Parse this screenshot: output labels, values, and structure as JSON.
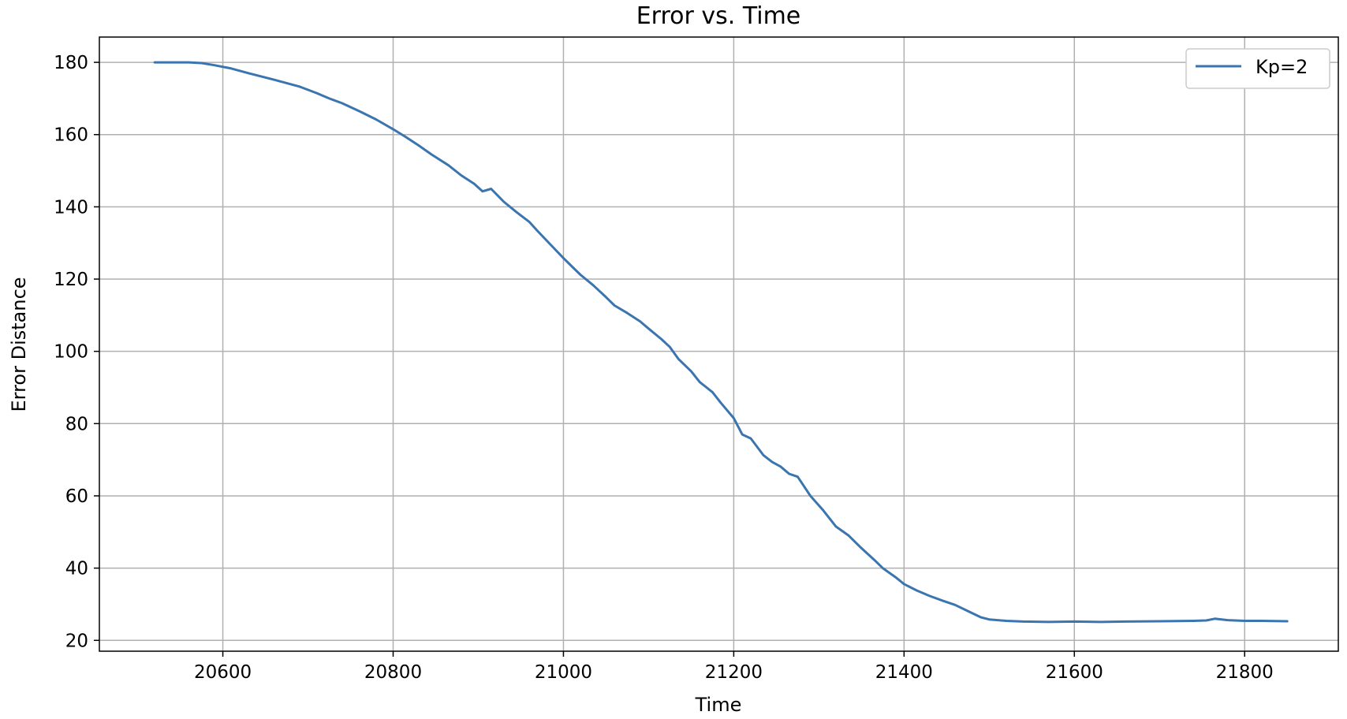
{
  "chart_data": {
    "type": "line",
    "title": "Error vs. Time",
    "xlabel": "Time",
    "ylabel": "Error Distance",
    "xlim": [
      20455,
      21910
    ],
    "ylim": [
      17,
      187
    ],
    "xticks": [
      20600,
      20800,
      21000,
      21200,
      21400,
      21600,
      21800
    ],
    "yticks": [
      20,
      40,
      60,
      80,
      100,
      120,
      140,
      160,
      180
    ],
    "grid": true,
    "legend_position": "top-right",
    "colors": {
      "series": "#3b75af",
      "grid": "#b0b0b0",
      "axis": "#000000"
    },
    "series": [
      {
        "name": "Kp=2",
        "x": [
          20520,
          20540,
          20560,
          20575,
          20590,
          20610,
          20630,
          20660,
          20690,
          20710,
          20725,
          20740,
          20760,
          20780,
          20800,
          20815,
          20830,
          20845,
          20865,
          20880,
          20895,
          20905,
          20915,
          20930,
          20945,
          20960,
          20970,
          20985,
          21000,
          21010,
          21020,
          21035,
          21050,
          21060,
          21075,
          21090,
          21100,
          21115,
          21125,
          21135,
          21150,
          21160,
          21175,
          21185,
          21200,
          21210,
          21220,
          21235,
          21245,
          21255,
          21265,
          21275,
          21290,
          21305,
          21320,
          21335,
          21350,
          21365,
          21375,
          21390,
          21400,
          21415,
          21430,
          21445,
          21460,
          21475,
          21490,
          21500,
          21520,
          21540,
          21570,
          21600,
          21630,
          21660,
          21700,
          21740,
          21755,
          21765,
          21780,
          21800,
          21820,
          21850
        ],
        "y": [
          180,
          180,
          180,
          179.8,
          179.2,
          178.3,
          177,
          175.2,
          173.3,
          171.5,
          170,
          168.7,
          166.5,
          164.2,
          161.5,
          159.3,
          157,
          154.5,
          151.5,
          148.7,
          146.4,
          144.3,
          145,
          141.4,
          138.5,
          135.8,
          133.2,
          129.5,
          125.8,
          123.5,
          121.2,
          118.3,
          115,
          112.7,
          110.6,
          108.3,
          106.3,
          103.4,
          101.2,
          97.9,
          94.5,
          91.5,
          88.7,
          85.7,
          81.5,
          77,
          75.9,
          71.2,
          69.4,
          68.1,
          66.1,
          65.3,
          60,
          56,
          51.5,
          49,
          45.5,
          42.3,
          40,
          37.5,
          35.6,
          33.8,
          32.3,
          31,
          29.8,
          28.1,
          26.4,
          25.8,
          25.4,
          25.2,
          25.1,
          25.2,
          25.1,
          25.2,
          25.3,
          25.4,
          25.5,
          26,
          25.6,
          25.4,
          25.4,
          25.3
        ]
      }
    ]
  }
}
